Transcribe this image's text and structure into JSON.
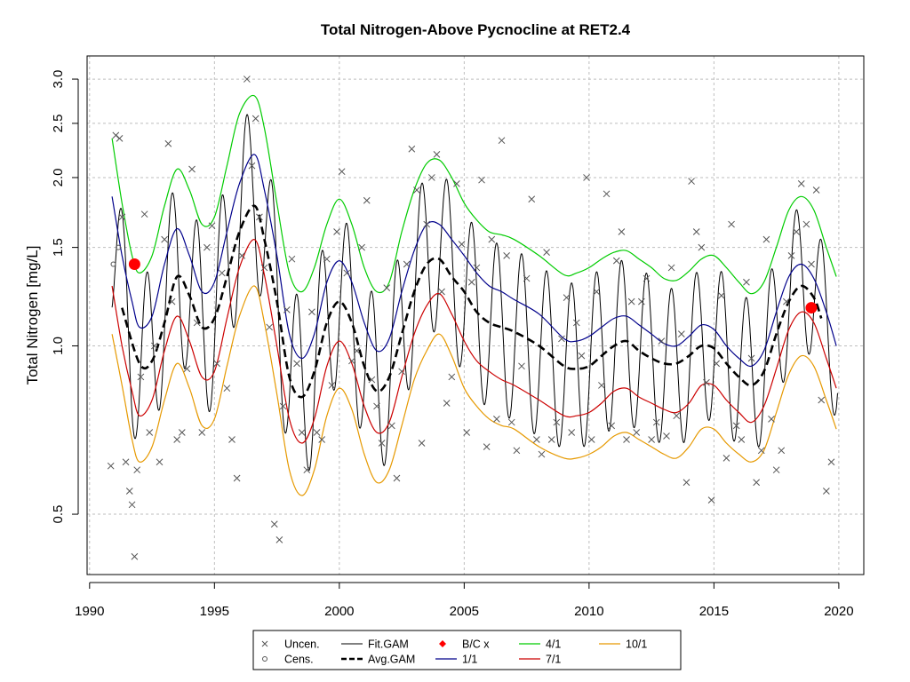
{
  "chart_data": {
    "type": "line",
    "title": "Total Nitrogen-Above Pycnocline at RET2.4",
    "xlabel": "",
    "ylabel": "Total Nitrogen [mg/L]",
    "y_scale": "log",
    "xlim": [
      1989.9,
      2021.0
    ],
    "ylim": [
      0.39,
      3.3
    ],
    "x_ticks": [
      1990,
      1995,
      2000,
      2005,
      2010,
      2015,
      2020
    ],
    "y_ticks": [
      0.5,
      1.0,
      1.5,
      2.0,
      2.5,
      3.0
    ],
    "y_tick_labels": [
      "0.5",
      "1.0",
      "1.5",
      "2.0",
      "2.5",
      "3.0"
    ],
    "grid": true,
    "legend_position": "bottom",
    "legend": [
      "Uncen.",
      "Cens.",
      "Fit.GAM",
      "Avg.GAM",
      "B/C x",
      "1/1",
      "4/1",
      "7/1",
      "10/1"
    ],
    "colors": {
      "uncen": "#555555",
      "fit": "#000000",
      "avg": "#000000",
      "bc": "#ff0000",
      "q11": "#00008b",
      "q41": "#00cc00",
      "q71": "#cc0000",
      "q101": "#e69900",
      "grid": "#bebebe"
    },
    "avg_gam": {
      "x": [
        1991.3,
        1992.0,
        1992.5,
        1993.0,
        1993.5,
        1994.0,
        1994.5,
        1995.0,
        1995.5,
        1996.0,
        1996.6,
        1997.0,
        1997.5,
        1998.0,
        1998.5,
        1999.0,
        1999.5,
        2000.0,
        2000.5,
        2001.0,
        2001.5,
        2002.0,
        2002.5,
        2003.0,
        2003.5,
        2004.0,
        2004.5,
        2005.0,
        2005.5,
        2006.0,
        2006.5,
        2007.0,
        2008.0,
        2009.0,
        2009.5,
        2010.0,
        2010.5,
        2011.0,
        2011.5,
        2012.0,
        2012.5,
        2013.0,
        2013.5,
        2014.0,
        2014.5,
        2015.0,
        2015.5,
        2016.0,
        2016.5,
        2017.0,
        2017.5,
        2018.0,
        2018.5,
        2019.0,
        2019.3
      ],
      "y": [
        1.17,
        0.93,
        0.94,
        1.1,
        1.33,
        1.23,
        1.08,
        1.12,
        1.33,
        1.6,
        1.78,
        1.55,
        1.2,
        0.88,
        0.81,
        0.9,
        1.1,
        1.2,
        1.1,
        0.92,
        0.83,
        0.88,
        1.05,
        1.25,
        1.4,
        1.43,
        1.33,
        1.25,
        1.15,
        1.1,
        1.08,
        1.06,
        1.0,
        0.92,
        0.91,
        0.92,
        0.96,
        1.0,
        1.02,
        0.98,
        0.95,
        0.93,
        0.93,
        0.96,
        1.0,
        0.99,
        0.93,
        0.88,
        0.85,
        0.9,
        1.05,
        1.2,
        1.28,
        1.22,
        1.12
      ]
    },
    "quantile_1_1": {
      "x": [
        1990.9,
        1991.3,
        1991.7,
        1992.0,
        1992.5,
        1993.0,
        1993.5,
        1994.0,
        1994.5,
        1995.0,
        1995.5,
        1996.0,
        1996.6,
        1997.0,
        1997.5,
        1998.0,
        1998.5,
        1999.0,
        1999.5,
        2000.0,
        2000.5,
        2001.0,
        2001.5,
        2002.0,
        2002.5,
        2003.0,
        2003.5,
        2004.0,
        2004.5,
        2005.0,
        2005.5,
        2006.0,
        2006.5,
        2007.0,
        2008.0,
        2009.0,
        2009.5,
        2010.0,
        2010.5,
        2011.0,
        2011.5,
        2012.0,
        2012.5,
        2013.0,
        2013.5,
        2014.0,
        2014.5,
        2015.0,
        2015.5,
        2016.0,
        2016.5,
        2017.0,
        2017.5,
        2018.0,
        2018.5,
        2019.0,
        2019.5,
        2019.9
      ],
      "y": [
        1.85,
        1.45,
        1.2,
        1.08,
        1.13,
        1.4,
        1.62,
        1.45,
        1.25,
        1.3,
        1.6,
        1.95,
        2.2,
        1.9,
        1.45,
        1.05,
        0.95,
        1.05,
        1.3,
        1.42,
        1.3,
        1.1,
        0.98,
        1.03,
        1.25,
        1.48,
        1.65,
        1.65,
        1.55,
        1.45,
        1.35,
        1.28,
        1.25,
        1.21,
        1.14,
        1.03,
        1.02,
        1.04,
        1.08,
        1.12,
        1.13,
        1.09,
        1.05,
        1.01,
        1.0,
        1.04,
        1.09,
        1.07,
        1.0,
        0.95,
        0.92,
        0.98,
        1.15,
        1.33,
        1.4,
        1.32,
        1.15,
        1.0
      ]
    },
    "quantile_4_1": {
      "x": [
        1990.9,
        1991.3,
        1991.7,
        1992.0,
        1992.5,
        1993.0,
        1993.5,
        1994.0,
        1994.5,
        1995.0,
        1995.5,
        1996.0,
        1996.6,
        1997.0,
        1997.5,
        1998.0,
        1998.5,
        1999.0,
        1999.5,
        2000.0,
        2000.5,
        2001.0,
        2001.5,
        2002.0,
        2002.5,
        2003.0,
        2003.5,
        2004.0,
        2004.5,
        2005.0,
        2005.5,
        2006.0,
        2006.5,
        2007.0,
        2008.0,
        2009.0,
        2009.5,
        2010.0,
        2010.5,
        2011.0,
        2011.5,
        2012.0,
        2012.5,
        2013.0,
        2013.5,
        2014.0,
        2014.5,
        2015.0,
        2015.5,
        2016.0,
        2016.5,
        2017.0,
        2017.5,
        2018.0,
        2018.5,
        2019.0,
        2019.5,
        2019.9
      ],
      "y": [
        2.35,
        1.8,
        1.45,
        1.35,
        1.45,
        1.78,
        2.07,
        1.9,
        1.65,
        1.7,
        2.1,
        2.6,
        2.8,
        2.45,
        1.8,
        1.35,
        1.25,
        1.38,
        1.65,
        1.83,
        1.65,
        1.38,
        1.25,
        1.3,
        1.6,
        1.9,
        2.12,
        2.15,
        2.0,
        1.8,
        1.68,
        1.6,
        1.58,
        1.55,
        1.45,
        1.34,
        1.35,
        1.38,
        1.43,
        1.47,
        1.48,
        1.43,
        1.38,
        1.32,
        1.31,
        1.36,
        1.43,
        1.45,
        1.38,
        1.3,
        1.24,
        1.3,
        1.5,
        1.75,
        1.85,
        1.75,
        1.5,
        1.33
      ]
    },
    "quantile_7_1": {
      "x": [
        1990.9,
        1991.3,
        1991.7,
        1992.0,
        1992.5,
        1993.0,
        1993.5,
        1994.0,
        1994.5,
        1995.0,
        1995.5,
        1996.0,
        1996.6,
        1997.0,
        1997.5,
        1998.0,
        1998.5,
        1999.0,
        1999.5,
        2000.0,
        2000.5,
        2001.0,
        2001.5,
        2002.0,
        2002.5,
        2003.0,
        2003.5,
        2004.0,
        2004.5,
        2005.0,
        2005.5,
        2006.0,
        2006.5,
        2007.0,
        2008.0,
        2009.0,
        2009.5,
        2010.0,
        2010.5,
        2011.0,
        2011.5,
        2012.0,
        2012.5,
        2013.0,
        2013.5,
        2014.0,
        2014.5,
        2015.0,
        2015.5,
        2016.0,
        2016.5,
        2017.0,
        2017.5,
        2018.0,
        2018.5,
        2019.0,
        2019.5,
        2019.9
      ],
      "y": [
        1.28,
        1.0,
        0.83,
        0.75,
        0.8,
        0.98,
        1.13,
        1.02,
        0.88,
        0.9,
        1.12,
        1.38,
        1.55,
        1.34,
        1.0,
        0.74,
        0.67,
        0.74,
        0.92,
        1.02,
        0.93,
        0.78,
        0.7,
        0.73,
        0.88,
        1.05,
        1.18,
        1.24,
        1.14,
        1.02,
        0.94,
        0.9,
        0.87,
        0.85,
        0.8,
        0.75,
        0.75,
        0.76,
        0.79,
        0.83,
        0.84,
        0.81,
        0.79,
        0.77,
        0.76,
        0.79,
        0.85,
        0.85,
        0.8,
        0.76,
        0.73,
        0.78,
        0.91,
        1.07,
        1.15,
        1.1,
        0.95,
        0.84
      ]
    },
    "quantile_10_1": {
      "x": [
        1990.9,
        1991.3,
        1991.7,
        1992.0,
        1992.5,
        1993.0,
        1993.5,
        1994.0,
        1994.5,
        1995.0,
        1995.5,
        1996.0,
        1996.6,
        1997.0,
        1997.5,
        1998.0,
        1998.5,
        1999.0,
        1999.5,
        2000.0,
        2000.5,
        2001.0,
        2001.5,
        2002.0,
        2002.5,
        2003.0,
        2003.5,
        2004.0,
        2004.5,
        2005.0,
        2005.5,
        2006.0,
        2006.5,
        2007.0,
        2008.0,
        2009.0,
        2009.5,
        2010.0,
        2010.5,
        2011.0,
        2011.5,
        2012.0,
        2012.5,
        2013.0,
        2013.5,
        2014.0,
        2014.5,
        2015.0,
        2015.5,
        2016.0,
        2016.5,
        2017.0,
        2017.5,
        2018.0,
        2018.5,
        2019.0,
        2019.5,
        2019.9
      ],
      "y": [
        1.05,
        0.85,
        0.68,
        0.62,
        0.66,
        0.8,
        0.93,
        0.84,
        0.72,
        0.74,
        0.92,
        1.13,
        1.28,
        1.1,
        0.82,
        0.6,
        0.54,
        0.6,
        0.75,
        0.84,
        0.77,
        0.64,
        0.57,
        0.6,
        0.72,
        0.87,
        0.98,
        1.05,
        0.96,
        0.84,
        0.78,
        0.74,
        0.72,
        0.71,
        0.66,
        0.63,
        0.63,
        0.64,
        0.66,
        0.69,
        0.7,
        0.68,
        0.66,
        0.64,
        0.63,
        0.66,
        0.71,
        0.71,
        0.67,
        0.64,
        0.62,
        0.65,
        0.76,
        0.89,
        0.96,
        0.92,
        0.8,
        0.71
      ]
    },
    "bc_points": {
      "x": [
        1991.8,
        2018.9
      ],
      "y": [
        1.4,
        1.17
      ]
    },
    "uncensored_points": {
      "x": [
        1990.85,
        1991.05,
        1991.2,
        1991.3,
        1991.45,
        1991.6,
        1991.7,
        1991.8,
        1991.9,
        1992.05,
        1992.2,
        1992.4,
        1992.6,
        1992.8,
        1993.0,
        1993.15,
        1993.3,
        1993.5,
        1993.7,
        1993.9,
        1994.1,
        1994.3,
        1994.5,
        1994.7,
        1994.9,
        1995.1,
        1995.3,
        1995.5,
        1995.7,
        1995.9,
        1996.1,
        1996.3,
        1996.5,
        1996.65,
        1996.8,
        1997.0,
        1997.2,
        1997.4,
        1997.6,
        1997.75,
        1997.9,
        1998.1,
        1998.3,
        1998.5,
        1998.7,
        1998.9,
        1999.1,
        1999.3,
        1999.5,
        1999.7,
        1999.9,
        2000.1,
        2000.3,
        2000.5,
        2000.7,
        2000.9,
        2001.1,
        2001.3,
        2001.5,
        2001.7,
        2001.9,
        2002.1,
        2002.3,
        2002.5,
        2002.7,
        2002.9,
        2003.1,
        2003.3,
        2003.5,
        2003.7,
        2003.9,
        2004.1,
        2004.3,
        2004.5,
        2004.7,
        2004.9,
        2005.1,
        2005.3,
        2005.5,
        2005.7,
        2005.9,
        2006.1,
        2006.3,
        2006.5,
        2006.7,
        2006.9,
        2007.1,
        2007.3,
        2007.5,
        2007.7,
        2007.9,
        2008.1,
        2008.3,
        2008.5,
        2008.7,
        2008.9,
        2009.1,
        2009.3,
        2009.5,
        2009.7,
        2009.9,
        2010.1,
        2010.3,
        2010.5,
        2010.7,
        2010.9,
        2011.1,
        2011.3,
        2011.5,
        2011.7,
        2011.9,
        2012.1,
        2012.3,
        2012.5,
        2012.7,
        2012.9,
        2013.1,
        2013.3,
        2013.5,
        2013.7,
        2013.9,
        2014.1,
        2014.3,
        2014.5,
        2014.7,
        2014.9,
        2015.1,
        2015.3,
        2015.5,
        2015.7,
        2015.9,
        2016.1,
        2016.3,
        2016.5,
        2016.7,
        2016.9,
        2017.1,
        2017.3,
        2017.5,
        2017.7,
        2017.9,
        2018.1,
        2018.3,
        2018.5,
        2018.7,
        2018.9,
        2019.1,
        2019.3,
        2019.5,
        2019.7
      ],
      "y": [
        0.61,
        2.38,
        2.35,
        1.7,
        0.62,
        0.55,
        0.52,
        0.42,
        0.6,
        0.88,
        1.72,
        0.7,
        1.0,
        0.62,
        1.55,
        2.3,
        1.2,
        0.68,
        0.7,
        0.91,
        2.07,
        1.1,
        0.7,
        1.5,
        1.64,
        0.93,
        1.35,
        0.84,
        0.68,
        0.58,
        1.45,
        3.0,
        2.1,
        2.55,
        1.7,
        1.38,
        1.08,
        0.48,
        0.45,
        0.78,
        1.16,
        1.43,
        0.93,
        0.7,
        0.6,
        1.15,
        0.7,
        0.68,
        1.43,
        0.85,
        1.6,
        2.05,
        1.35,
        0.94,
        0.98,
        1.5,
        1.82,
        0.87,
        0.78,
        0.67,
        1.27,
        0.72,
        0.58,
        0.9,
        1.4,
        2.25,
        1.9,
        0.67,
        1.65,
        2.0,
        2.2,
        1.25,
        0.79,
        0.88,
        1.95,
        1.52,
        0.7,
        1.3,
        1.38,
        1.98,
        0.66,
        1.55,
        0.74,
        2.33,
        1.45,
        0.73,
        0.65,
        0.92,
        1.32,
        1.83,
        0.68,
        0.64,
        1.47,
        0.68,
        0.73,
        1.03,
        1.22,
        0.7,
        1.1,
        0.96,
        2.0,
        0.68,
        1.25,
        0.85,
        1.87,
        0.72,
        1.42,
        1.6,
        0.68,
        1.2,
        0.7,
        1.2,
        1.32,
        0.68,
        0.73,
        1.02,
        0.69,
        1.38,
        0.75,
        1.05,
        0.57,
        1.97,
        1.6,
        1.5,
        0.86,
        0.53,
        0.93,
        1.23,
        0.63,
        1.65,
        0.72,
        0.68,
        1.3,
        0.95,
        0.57,
        0.65,
        1.55,
        0.74,
        0.6,
        0.65,
        1.2,
        1.45,
        1.6,
        1.95,
        1.65,
        1.4,
        1.9,
        0.8,
        0.55,
        0.62
      ]
    },
    "censored_points": {
      "x": [
        1990.95,
        1991.15
      ],
      "y": [
        1.4,
        1.5
      ]
    }
  }
}
